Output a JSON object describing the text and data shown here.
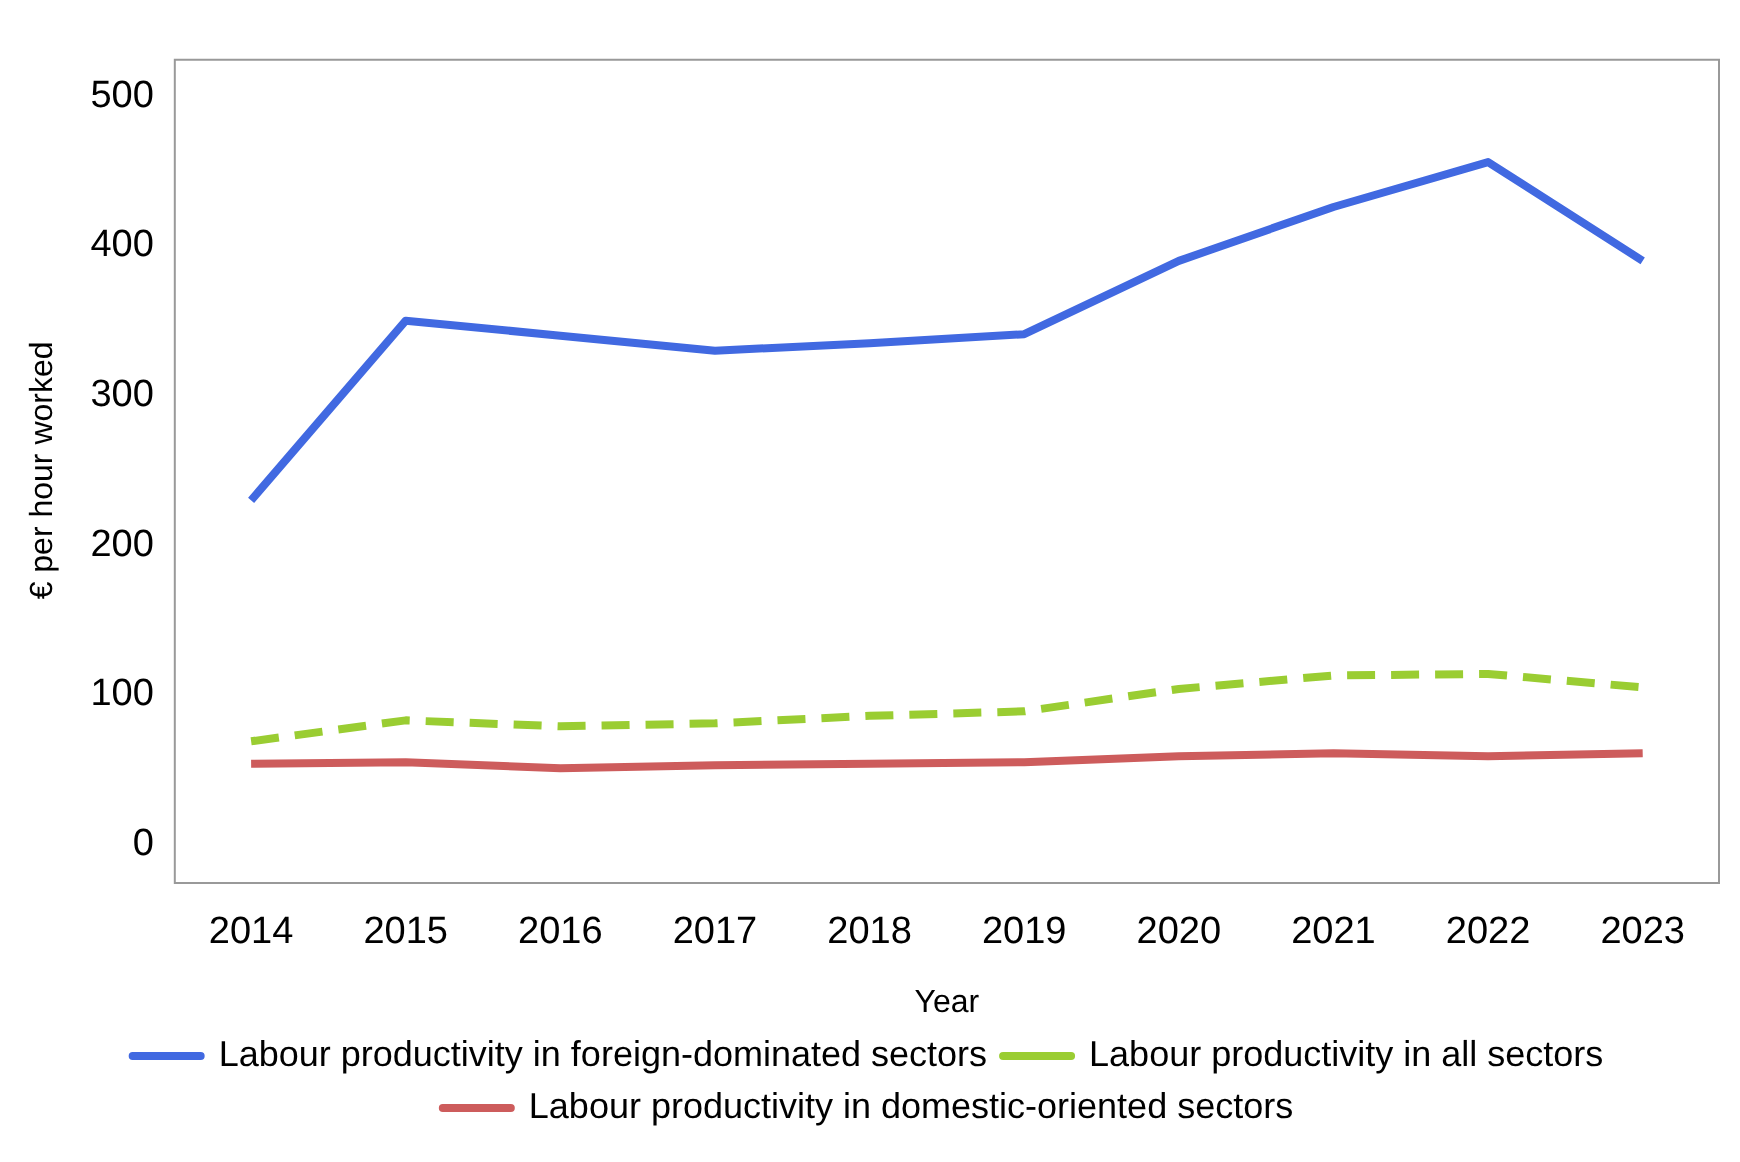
{
  "chart_data": {
    "type": "line",
    "xlabel": "Year",
    "ylabel": "€ per hour worked",
    "categories": [
      "2014",
      "2015",
      "2016",
      "2017",
      "2018",
      "2019",
      "2020",
      "2021",
      "2022",
      "2023"
    ],
    "series": [
      {
        "name": "Labour productivity in foreign-dominated sectors",
        "color": "#4169e1",
        "line_style": "solid",
        "values": [
          230,
          350,
          340,
          330,
          335,
          341,
          390,
          426,
          456,
          390
        ]
      },
      {
        "name": "Labour productivity in all sectors",
        "color": "#9acd32",
        "line_style": "dashed",
        "values": [
          69,
          83,
          79,
          81,
          86,
          89,
          104,
          113,
          114,
          105
        ]
      },
      {
        "name": "Labour productivity in domestic-oriented sectors",
        "color": "#cd5c5c",
        "line_style": "solid",
        "values": [
          54,
          55,
          51,
          53,
          54,
          55,
          59,
          61,
          59,
          61
        ]
      }
    ],
    "ylim": [
      -25,
      525
    ],
    "yticks": [
      0,
      100,
      200,
      300,
      400,
      500
    ],
    "grid": false,
    "legend": "bottom",
    "marker": "none"
  }
}
